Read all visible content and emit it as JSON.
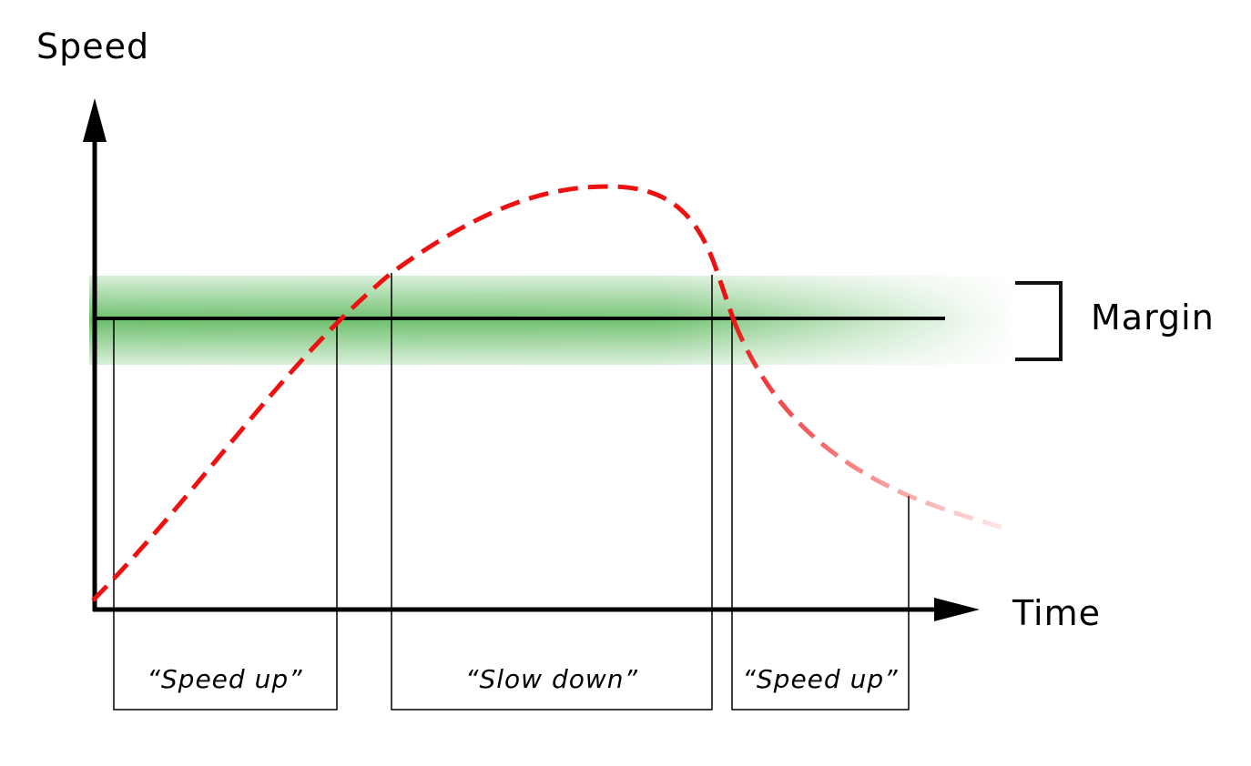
{
  "axes": {
    "y_label": "Speed",
    "x_label": "Time"
  },
  "band": {
    "label": "Margin",
    "color": "#5cb85c"
  },
  "curve": {
    "color": "#ee1111",
    "style": "dashed"
  },
  "phases": [
    {
      "label": "“Speed up”"
    },
    {
      "label": "“Slow down”"
    },
    {
      "label": "“Speed up”"
    }
  ]
}
